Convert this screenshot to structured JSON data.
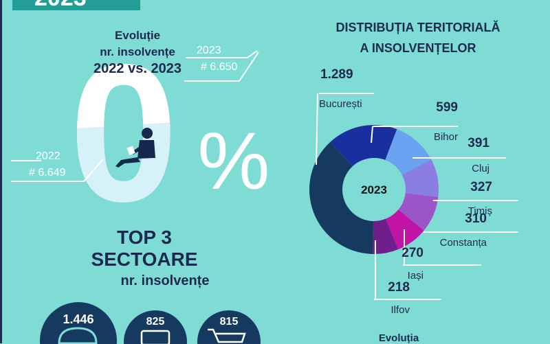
{
  "banner": {
    "year_text": "2023"
  },
  "evolution": {
    "title_line1": "Evoluție",
    "title_line2": "nr. insolvențe",
    "title_line3": "2022 vs. 2023",
    "big_value": "0",
    "percent_sign": "%",
    "label_2023_year": "2023",
    "label_2023_value": "# 6.650",
    "label_2022_year": "2022",
    "label_2022_value": "# 6.649"
  },
  "top_sectors": {
    "title_line1": "TOP 3",
    "title_line2": "SECTOARE",
    "title_line3": "nr. insolvențe",
    "values": [
      "1.446",
      "825",
      "815"
    ],
    "icons": [
      "helmet-icon",
      "truck-icon",
      "shopping-cart-icon"
    ]
  },
  "distribution": {
    "title_line1": "DISTRIBUȚIA TERITORIALĂ",
    "title_line2": "A INSOLVENȚELOR",
    "center_label": "2023"
  },
  "chart_data": {
    "type": "pie",
    "title": "DISTRIBUȚIA TERITORIALĂ A INSOLVENȚELOR",
    "center_label": "2023",
    "categories": [
      "București",
      "Bihor",
      "Cluj",
      "Timiș",
      "Constanța",
      "Iași",
      "Ilfov"
    ],
    "values": [
      1289,
      599,
      391,
      327,
      310,
      270,
      218
    ],
    "value_labels": [
      "1.289",
      "599",
      "391",
      "327",
      "310",
      "270",
      "218"
    ],
    "colors": [
      "#163a5f",
      "#1a2f9e",
      "#6aa3f2",
      "#8a7ee3",
      "#9b55c7",
      "#c114a6",
      "#6e1f8c"
    ]
  },
  "footer": {
    "partial_title": "Evoluția"
  }
}
